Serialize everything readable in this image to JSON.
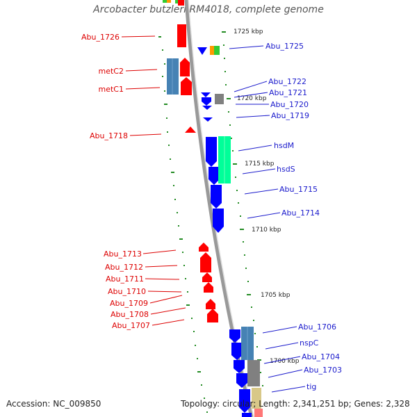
{
  "title": "Arcobacter butzleri RM4018, complete genome",
  "footer": {
    "accession": "Accession: NC_009850",
    "summary": "Topology: circular; Length: 2,341,251 bp; Genes: 2,328"
  },
  "kbp_labels": [
    "1725 kbp",
    "1720 kbp",
    "1715 kbp",
    "1710 kbp",
    "1705 kbp",
    "1700 kbp"
  ],
  "genes_left": [
    "Abu_1726",
    "metC2",
    "metC1",
    "Abu_1718",
    "Abu_1713",
    "Abu_1712",
    "Abu_1711",
    "Abu_1710",
    "Abu_1709",
    "Abu_1708",
    "Abu_1707"
  ],
  "genes_right": [
    "Abu_1725",
    "Abu_1722",
    "Abu_1721",
    "Abu_1720",
    "Abu_1719",
    "hsdM",
    "hsdS",
    "Abu_1715",
    "Abu_1714",
    "Abu_1706",
    "nspC",
    "Abu_1704",
    "Abu_1703",
    "tig"
  ],
  "colors": {
    "reverse_strand": "#ff0000",
    "forward_strand": "#0000ff",
    "backbone": "#999999",
    "tick": "#228b22",
    "cog_blue": "#4682b4",
    "cog_gray": "#808080",
    "cog_green": "#00ff99",
    "cog_khaki": "#d8c888"
  }
}
